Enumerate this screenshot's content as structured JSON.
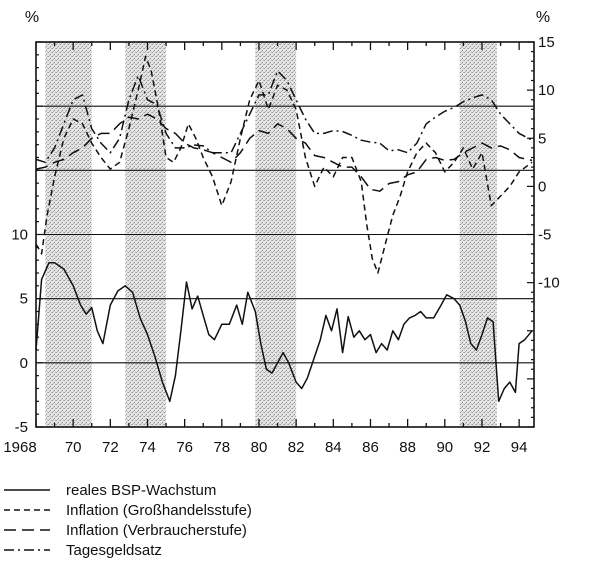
{
  "chart_data": {
    "type": "line",
    "x_ticks": [
      "1968",
      "70",
      "72",
      "74",
      "76",
      "78",
      "80",
      "82",
      "84",
      "86",
      "88",
      "90",
      "92",
      "94"
    ],
    "x_range": [
      1968,
      1994.8
    ],
    "left_axis": {
      "unit": "%",
      "ticks": [
        "10",
        "5",
        "0",
        "-5"
      ],
      "range": [
        -5,
        25
      ]
    },
    "right_axis": {
      "unit": "%",
      "ticks": [
        "15",
        "10",
        "5",
        "0",
        "-5",
        "-10"
      ],
      "range": [
        -25,
        15
      ]
    },
    "shaded_periods": [
      [
        1968.5,
        1971.0
      ],
      [
        1972.8,
        1975.0
      ],
      [
        1979.8,
        1982.0
      ],
      [
        1990.8,
        1992.8
      ]
    ],
    "grid": "horizontal",
    "legend_position": "bottom-left",
    "series": [
      {
        "name": "reales BSP-Wachstum",
        "axis": "left",
        "style": "solid",
        "points": [
          [
            1968.0,
            1.0
          ],
          [
            1968.3,
            6.5
          ],
          [
            1968.7,
            7.8
          ],
          [
            1969.0,
            7.8
          ],
          [
            1969.5,
            7.3
          ],
          [
            1970.0,
            6.0
          ],
          [
            1970.4,
            4.5
          ],
          [
            1970.7,
            3.8
          ],
          [
            1971.0,
            4.3
          ],
          [
            1971.3,
            2.5
          ],
          [
            1971.6,
            1.5
          ],
          [
            1972.0,
            4.5
          ],
          [
            1972.4,
            5.6
          ],
          [
            1972.8,
            6.0
          ],
          [
            1973.2,
            5.5
          ],
          [
            1973.6,
            3.5
          ],
          [
            1974.0,
            2.2
          ],
          [
            1974.4,
            0.5
          ],
          [
            1974.8,
            -1.5
          ],
          [
            1975.2,
            -3.0
          ],
          [
            1975.5,
            -1.0
          ],
          [
            1975.8,
            2.5
          ],
          [
            1976.1,
            6.3
          ],
          [
            1976.4,
            4.2
          ],
          [
            1976.7,
            5.2
          ],
          [
            1977.0,
            3.7
          ],
          [
            1977.3,
            2.2
          ],
          [
            1977.6,
            1.8
          ],
          [
            1978.0,
            3.0
          ],
          [
            1978.4,
            3.0
          ],
          [
            1978.8,
            4.5
          ],
          [
            1979.1,
            3.0
          ],
          [
            1979.4,
            5.5
          ],
          [
            1979.8,
            4.0
          ],
          [
            1980.1,
            1.5
          ],
          [
            1980.4,
            -0.5
          ],
          [
            1980.7,
            -0.8
          ],
          [
            1981.0,
            0.0
          ],
          [
            1981.3,
            0.8
          ],
          [
            1981.6,
            0.0
          ],
          [
            1982.0,
            -1.5
          ],
          [
            1982.3,
            -2.0
          ],
          [
            1982.6,
            -1.2
          ],
          [
            1983.0,
            0.5
          ],
          [
            1983.3,
            1.8
          ],
          [
            1983.6,
            3.7
          ],
          [
            1983.9,
            2.5
          ],
          [
            1984.2,
            4.2
          ],
          [
            1984.5,
            0.8
          ],
          [
            1984.8,
            3.6
          ],
          [
            1985.1,
            2.0
          ],
          [
            1985.4,
            2.5
          ],
          [
            1985.7,
            1.8
          ],
          [
            1986.0,
            2.2
          ],
          [
            1986.3,
            0.8
          ],
          [
            1986.6,
            1.5
          ],
          [
            1986.9,
            1.0
          ],
          [
            1987.2,
            2.5
          ],
          [
            1987.5,
            1.8
          ],
          [
            1987.8,
            3.0
          ],
          [
            1988.1,
            3.5
          ],
          [
            1988.4,
            3.7
          ],
          [
            1988.7,
            4.0
          ],
          [
            1989.0,
            3.5
          ],
          [
            1989.4,
            3.5
          ],
          [
            1989.8,
            4.5
          ],
          [
            1990.1,
            5.3
          ],
          [
            1990.5,
            5.0
          ],
          [
            1990.8,
            4.5
          ],
          [
            1991.1,
            3.3
          ],
          [
            1991.4,
            1.5
          ],
          [
            1991.7,
            1.0
          ],
          [
            1992.0,
            2.2
          ],
          [
            1992.3,
            3.5
          ],
          [
            1992.6,
            3.2
          ],
          [
            1992.9,
            -3.0
          ],
          [
            1993.2,
            -2.0
          ],
          [
            1993.5,
            -1.5
          ],
          [
            1993.8,
            -2.3
          ],
          [
            1994.0,
            1.5
          ],
          [
            1994.3,
            1.8
          ],
          [
            1994.7,
            2.5
          ]
        ]
      },
      {
        "name": "Inflation (Großhandelsstufe)",
        "axis": "right",
        "style": "dashed",
        "points": [
          [
            1968.0,
            -6.0
          ],
          [
            1968.3,
            -7.0
          ],
          [
            1968.6,
            -3.0
          ],
          [
            1969.0,
            1.0
          ],
          [
            1969.5,
            5.0
          ],
          [
            1970.0,
            7.0
          ],
          [
            1970.5,
            6.5
          ],
          [
            1971.0,
            4.5
          ],
          [
            1971.5,
            3.0
          ],
          [
            1972.0,
            1.8
          ],
          [
            1972.5,
            2.5
          ],
          [
            1973.0,
            6.0
          ],
          [
            1973.5,
            10.0
          ],
          [
            1973.9,
            13.5
          ],
          [
            1974.2,
            12.0
          ],
          [
            1974.6,
            8.0
          ],
          [
            1975.0,
            3.0
          ],
          [
            1975.4,
            2.5
          ],
          [
            1975.8,
            4.0
          ],
          [
            1976.2,
            6.5
          ],
          [
            1976.6,
            5.0
          ],
          [
            1977.0,
            3.0
          ],
          [
            1977.5,
            1.0
          ],
          [
            1978.0,
            -2.0
          ],
          [
            1978.5,
            0.5
          ],
          [
            1979.0,
            5.0
          ],
          [
            1979.5,
            9.0
          ],
          [
            1980.0,
            11.0
          ],
          [
            1980.5,
            8.0
          ],
          [
            1981.0,
            10.5
          ],
          [
            1981.5,
            10.0
          ],
          [
            1982.0,
            8.0
          ],
          [
            1982.5,
            3.0
          ],
          [
            1983.0,
            0.0
          ],
          [
            1983.5,
            2.0
          ],
          [
            1984.0,
            1.0
          ],
          [
            1984.5,
            3.0
          ],
          [
            1985.0,
            3.0
          ],
          [
            1985.5,
            0.5
          ],
          [
            1985.8,
            -4.0
          ],
          [
            1986.1,
            -7.5
          ],
          [
            1986.4,
            -9.0
          ],
          [
            1986.8,
            -6.0
          ],
          [
            1987.2,
            -3.0
          ],
          [
            1987.6,
            -1.0
          ],
          [
            1988.0,
            1.5
          ],
          [
            1988.5,
            3.5
          ],
          [
            1989.0,
            4.5
          ],
          [
            1989.5,
            3.5
          ],
          [
            1990.0,
            1.5
          ],
          [
            1990.5,
            2.5
          ],
          [
            1991.0,
            4.0
          ],
          [
            1991.5,
            1.8
          ],
          [
            1992.0,
            3.5
          ],
          [
            1992.5,
            -2.0
          ],
          [
            1993.0,
            -1.0
          ],
          [
            1993.5,
            0.0
          ],
          [
            1994.0,
            1.5
          ],
          [
            1994.7,
            2.5
          ]
        ]
      },
      {
        "name": "Inflation (Verbraucherstufe)",
        "axis": "right",
        "style": "longdash",
        "points": [
          [
            1968.0,
            1.8
          ],
          [
            1968.5,
            2.0
          ],
          [
            1969.0,
            2.5
          ],
          [
            1969.5,
            2.8
          ],
          [
            1970.0,
            3.5
          ],
          [
            1970.5,
            4.0
          ],
          [
            1971.0,
            5.0
          ],
          [
            1971.5,
            5.5
          ],
          [
            1972.0,
            5.5
          ],
          [
            1972.5,
            6.5
          ],
          [
            1973.0,
            7.2
          ],
          [
            1973.5,
            7.0
          ],
          [
            1974.0,
            7.5
          ],
          [
            1974.5,
            7.0
          ],
          [
            1975.0,
            6.0
          ],
          [
            1975.5,
            5.5
          ],
          [
            1976.0,
            4.5
          ],
          [
            1976.5,
            4.0
          ],
          [
            1977.0,
            3.8
          ],
          [
            1977.5,
            3.5
          ],
          [
            1978.0,
            3.0
          ],
          [
            1978.5,
            2.5
          ],
          [
            1979.0,
            3.5
          ],
          [
            1979.5,
            5.0
          ],
          [
            1980.0,
            5.8
          ],
          [
            1980.5,
            5.5
          ],
          [
            1981.0,
            6.5
          ],
          [
            1981.5,
            6.0
          ],
          [
            1982.0,
            5.0
          ],
          [
            1982.5,
            4.5
          ],
          [
            1983.0,
            3.2
          ],
          [
            1983.5,
            3.0
          ],
          [
            1984.0,
            2.5
          ],
          [
            1984.5,
            2.0
          ],
          [
            1985.0,
            2.0
          ],
          [
            1985.5,
            1.0
          ],
          [
            1986.0,
            -0.3
          ],
          [
            1986.5,
            -0.5
          ],
          [
            1987.0,
            0.3
          ],
          [
            1987.5,
            0.5
          ],
          [
            1988.0,
            1.2
          ],
          [
            1988.5,
            1.5
          ],
          [
            1989.0,
            2.8
          ],
          [
            1989.5,
            3.0
          ],
          [
            1990.0,
            2.7
          ],
          [
            1990.5,
            2.8
          ],
          [
            1991.0,
            3.5
          ],
          [
            1991.5,
            4.0
          ],
          [
            1992.0,
            4.5
          ],
          [
            1992.5,
            4.0
          ],
          [
            1993.0,
            4.2
          ],
          [
            1993.5,
            3.8
          ],
          [
            1994.0,
            3.0
          ],
          [
            1994.7,
            2.7
          ]
        ]
      },
      {
        "name": "Tagesgeldsatz",
        "axis": "right",
        "style": "dashdot",
        "points": [
          [
            1968.0,
            2.8
          ],
          [
            1968.5,
            2.5
          ],
          [
            1969.0,
            4.0
          ],
          [
            1969.5,
            6.5
          ],
          [
            1970.0,
            9.0
          ],
          [
            1970.5,
            9.5
          ],
          [
            1971.0,
            6.0
          ],
          [
            1971.5,
            4.5
          ],
          [
            1972.0,
            3.5
          ],
          [
            1972.5,
            5.0
          ],
          [
            1973.0,
            9.0
          ],
          [
            1973.5,
            11.5
          ],
          [
            1974.0,
            9.0
          ],
          [
            1974.5,
            8.5
          ],
          [
            1975.0,
            5.5
          ],
          [
            1975.5,
            4.0
          ],
          [
            1976.0,
            4.0
          ],
          [
            1976.5,
            4.3
          ],
          [
            1977.0,
            4.2
          ],
          [
            1977.5,
            3.5
          ],
          [
            1978.0,
            3.5
          ],
          [
            1978.5,
            3.5
          ],
          [
            1979.0,
            5.5
          ],
          [
            1979.5,
            7.5
          ],
          [
            1980.0,
            9.5
          ],
          [
            1980.5,
            9.5
          ],
          [
            1981.0,
            12.0
          ],
          [
            1981.5,
            11.0
          ],
          [
            1982.0,
            9.0
          ],
          [
            1982.5,
            7.0
          ],
          [
            1983.0,
            5.5
          ],
          [
            1983.5,
            5.5
          ],
          [
            1984.0,
            5.8
          ],
          [
            1984.5,
            5.7
          ],
          [
            1985.0,
            5.3
          ],
          [
            1985.5,
            4.8
          ],
          [
            1986.0,
            4.6
          ],
          [
            1986.5,
            4.5
          ],
          [
            1987.0,
            3.7
          ],
          [
            1987.5,
            3.8
          ],
          [
            1988.0,
            3.5
          ],
          [
            1988.5,
            4.5
          ],
          [
            1989.0,
            6.5
          ],
          [
            1989.5,
            7.2
          ],
          [
            1990.0,
            7.8
          ],
          [
            1990.5,
            8.2
          ],
          [
            1991.0,
            8.8
          ],
          [
            1991.5,
            9.2
          ],
          [
            1992.0,
            9.5
          ],
          [
            1992.5,
            9.0
          ],
          [
            1993.0,
            7.5
          ],
          [
            1993.5,
            6.5
          ],
          [
            1994.0,
            5.5
          ],
          [
            1994.7,
            4.8
          ]
        ]
      }
    ]
  }
}
